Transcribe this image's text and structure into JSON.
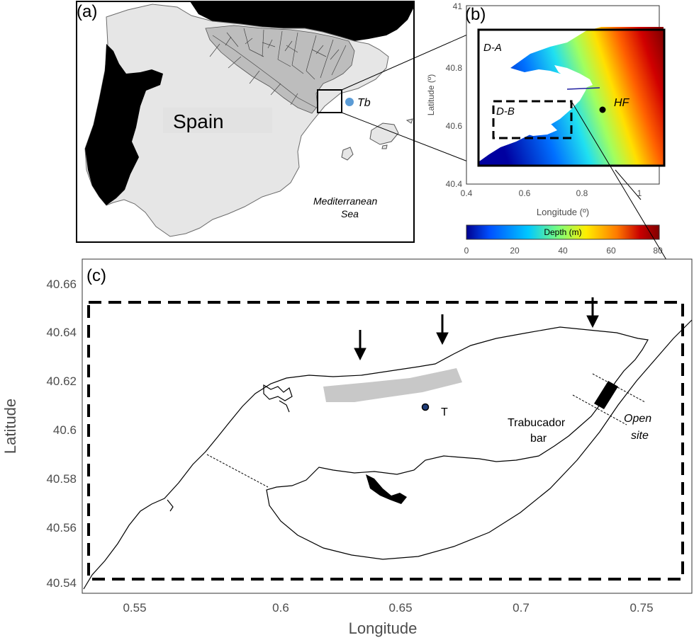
{
  "panel_a": {
    "label": "(a)",
    "country": "Spain",
    "sea": [
      "Mediterranean",
      "Sea"
    ],
    "site": "Tb",
    "colors": {
      "land": "#e6e6e6",
      "neighbour": "#000000",
      "basin": "#bdbdbd",
      "site": "#5b9bd5"
    }
  },
  "panel_b": {
    "label": "(b)",
    "domain_a": "D-A",
    "domain_b": "D-B",
    "station": "HF",
    "xlabel": "Longitude (º)",
    "ylabel": "Latitude (º)",
    "xticks": [
      "0.4",
      "0.6",
      "0.8",
      "1"
    ],
    "yticks": [
      "41",
      "40.8",
      "40.6",
      "40.4"
    ],
    "colorbar": {
      "title": "Depth (m)",
      "ticks": [
        "0",
        "20",
        "40",
        "60",
        "80"
      ],
      "range": [
        0,
        80
      ],
      "colormap": [
        "#00008f",
        "#0050ff",
        "#00c8ff",
        "#7dff7a",
        "#ffee00",
        "#ff7a00",
        "#c80000",
        "#800000"
      ]
    }
  },
  "panel_c": {
    "label": "(c)",
    "xlabel": "Longitude",
    "ylabel": "Latitude",
    "xticks": [
      "0.55",
      "0.6",
      "0.65",
      "0.7",
      "0.75"
    ],
    "yticks": [
      "40.66",
      "40.64",
      "40.62",
      "40.6",
      "40.58",
      "40.56",
      "40.54"
    ],
    "station": "T",
    "bar_label": [
      "Trabucador",
      "bar"
    ],
    "open_site": [
      "Open",
      "site"
    ],
    "xlim": [
      0.52,
      0.763
    ],
    "ylim": [
      40.535,
      40.67
    ]
  }
}
